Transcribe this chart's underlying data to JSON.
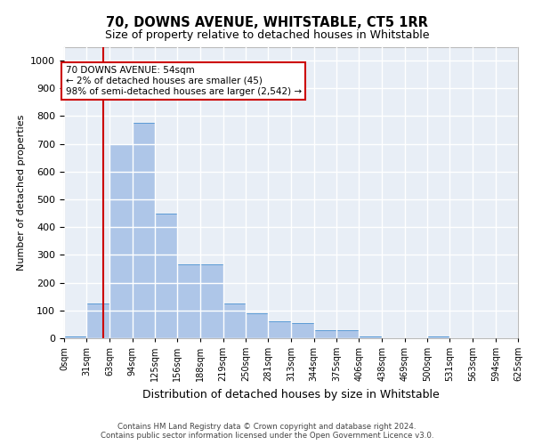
{
  "title": "70, DOWNS AVENUE, WHITSTABLE, CT5 1RR",
  "subtitle": "Size of property relative to detached houses in Whitstable",
  "xlabel": "Distribution of detached houses by size in Whitstable",
  "ylabel": "Number of detached properties",
  "bar_color": "#aec6e8",
  "bar_edge_color": "#5b9bd5",
  "background_color": "#e8eef6",
  "grid_color": "#ffffff",
  "annotation_line_color": "#cc0000",
  "annotation_text": "70 DOWNS AVENUE: 54sqm\n← 2% of detached houses are smaller (45)\n98% of semi-detached houses are larger (2,542) →",
  "footer_line1": "Contains HM Land Registry data © Crown copyright and database right 2024.",
  "footer_line2": "Contains public sector information licensed under the Open Government Licence v3.0.",
  "property_size": 54,
  "bin_edges": [
    0,
    31,
    63,
    94,
    125,
    156,
    188,
    219,
    250,
    281,
    313,
    344,
    375,
    406,
    438,
    469,
    500,
    531,
    563,
    594,
    625
  ],
  "bin_labels": [
    "0sqm",
    "31sqm",
    "63sqm",
    "94sqm",
    "125sqm",
    "156sqm",
    "188sqm",
    "219sqm",
    "250sqm",
    "281sqm",
    "313sqm",
    "344sqm",
    "375sqm",
    "406sqm",
    "438sqm",
    "469sqm",
    "500sqm",
    "531sqm",
    "563sqm",
    "594sqm",
    "625sqm"
  ],
  "bar_heights": [
    5,
    125,
    700,
    775,
    450,
    265,
    265,
    125,
    90,
    60,
    55,
    30,
    30,
    5,
    0,
    0,
    5,
    0,
    0,
    0
  ],
  "ylim": [
    0,
    1050
  ],
  "yticks": [
    0,
    100,
    200,
    300,
    400,
    500,
    600,
    700,
    800,
    900,
    1000
  ]
}
